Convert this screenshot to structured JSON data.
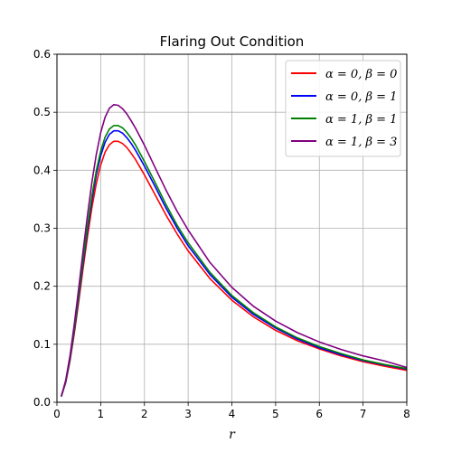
{
  "chart_data": {
    "type": "line",
    "title": "Flaring Out Condition",
    "xlabel": "r",
    "ylabel": "",
    "xlim": [
      0,
      8
    ],
    "ylim": [
      0,
      0.6
    ],
    "xticks": [
      0,
      1,
      2,
      3,
      4,
      5,
      6,
      7,
      8
    ],
    "xtick_labels": [
      "0",
      "1",
      "2",
      "3",
      "4",
      "5",
      "6",
      "7",
      "8"
    ],
    "yticks": [
      0.0,
      0.1,
      0.2,
      0.3,
      0.4,
      0.5,
      0.6
    ],
    "ytick_labels": [
      "0.0",
      "0.1",
      "0.2",
      "0.3",
      "0.4",
      "0.5",
      "0.6"
    ],
    "grid": true,
    "legend_position": "top-right",
    "x": [
      0.1,
      0.2,
      0.3,
      0.4,
      0.5,
      0.6,
      0.7,
      0.8,
      0.9,
      1.0,
      1.1,
      1.2,
      1.3,
      1.4,
      1.5,
      1.6,
      1.7,
      1.8,
      2.0,
      2.25,
      2.5,
      2.75,
      3.0,
      3.5,
      4.0,
      4.5,
      5.0,
      5.5,
      6.0,
      6.5,
      7.0,
      7.5,
      8.0
    ],
    "series": [
      {
        "name": "α = 0, β = 0",
        "color": "#ff0000",
        "values": [
          0.01,
          0.034,
          0.072,
          0.12,
          0.175,
          0.232,
          0.287,
          0.336,
          0.377,
          0.409,
          0.431,
          0.444,
          0.45,
          0.45,
          0.446,
          0.439,
          0.429,
          0.418,
          0.392,
          0.357,
          0.322,
          0.29,
          0.261,
          0.213,
          0.176,
          0.147,
          0.124,
          0.106,
          0.092,
          0.08,
          0.07,
          0.062,
          0.055
        ]
      },
      {
        "name": "α = 0, β = 1",
        "color": "#0000ff",
        "values": [
          0.01,
          0.035,
          0.075,
          0.125,
          0.182,
          0.241,
          0.298,
          0.349,
          0.392,
          0.425,
          0.448,
          0.462,
          0.468,
          0.468,
          0.464,
          0.456,
          0.446,
          0.434,
          0.407,
          0.371,
          0.334,
          0.3,
          0.27,
          0.22,
          0.181,
          0.151,
          0.128,
          0.109,
          0.094,
          0.082,
          0.072,
          0.064,
          0.057
        ]
      },
      {
        "name": "α = 1, β = 1",
        "color": "#008000",
        "values": [
          0.01,
          0.036,
          0.077,
          0.128,
          0.186,
          0.246,
          0.304,
          0.356,
          0.399,
          0.433,
          0.457,
          0.471,
          0.477,
          0.477,
          0.473,
          0.465,
          0.455,
          0.443,
          0.415,
          0.378,
          0.34,
          0.305,
          0.275,
          0.224,
          0.184,
          0.154,
          0.13,
          0.111,
          0.096,
          0.084,
          0.073,
          0.065,
          0.058
        ]
      },
      {
        "name": "α = 1, β = 3",
        "color": "#800080",
        "values": [
          0.01,
          0.038,
          0.081,
          0.136,
          0.198,
          0.262,
          0.324,
          0.38,
          0.427,
          0.465,
          0.491,
          0.507,
          0.513,
          0.512,
          0.506,
          0.497,
          0.485,
          0.472,
          0.443,
          0.404,
          0.365,
          0.329,
          0.297,
          0.241,
          0.198,
          0.165,
          0.14,
          0.12,
          0.104,
          0.091,
          0.08,
          0.071,
          0.06
        ]
      }
    ]
  }
}
